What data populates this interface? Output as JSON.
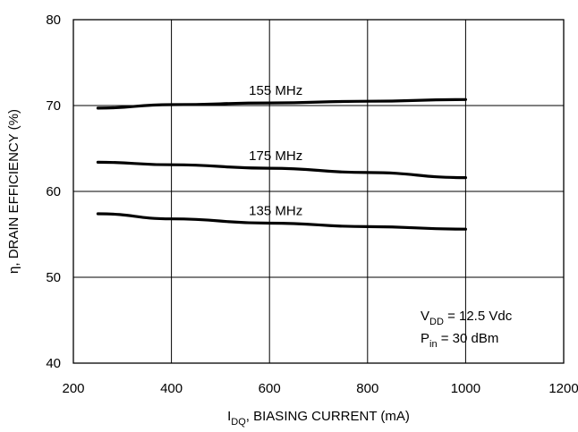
{
  "chart_data": {
    "type": "line",
    "xlabel": {
      "main": "I",
      "sub": "DQ",
      "rest": ", BIASING CURRENT (mA)"
    },
    "ylabel": "η, DRAIN EFFICIENCY (%)",
    "xlim": [
      200,
      1200
    ],
    "ylim": [
      40,
      80
    ],
    "x_ticks": [
      "200",
      "400",
      "600",
      "800",
      "1000",
      "1200"
    ],
    "y_ticks": [
      "40",
      "50",
      "60",
      "70",
      "80"
    ],
    "grid": true,
    "series": [
      {
        "name": "155 MHz",
        "x": [
          250,
          400,
          600,
          800,
          1000
        ],
        "y": [
          69.7,
          70.1,
          70.3,
          70.5,
          70.7
        ]
      },
      {
        "name": "175 MHz",
        "x": [
          250,
          400,
          600,
          800,
          1000
        ],
        "y": [
          63.4,
          63.1,
          62.7,
          62.2,
          61.6
        ]
      },
      {
        "name": "135 MHz",
        "x": [
          250,
          400,
          600,
          800,
          1000
        ],
        "y": [
          57.4,
          56.8,
          56.3,
          55.9,
          55.6
        ]
      }
    ],
    "annotation": {
      "line1": {
        "main": "V",
        "sub": "DD",
        "rest": " = 12.5 Vdc"
      },
      "line2": {
        "main": "P",
        "sub": "in",
        "rest": " = 30 dBm"
      }
    }
  }
}
